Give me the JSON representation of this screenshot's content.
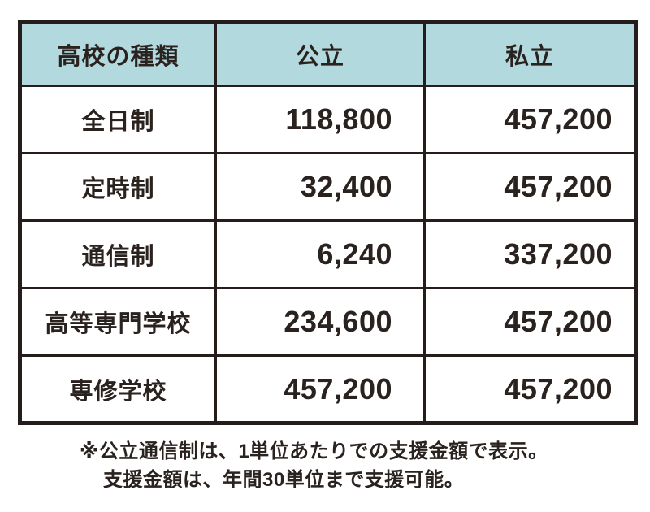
{
  "colors": {
    "background": "#ffffff",
    "header_bg": "#b2d9dd",
    "border": "#241d1b",
    "text": "#2a221f"
  },
  "table": {
    "header": {
      "type_label": "高校の種類",
      "public_label": "公立",
      "private_label": "私立"
    },
    "rows": [
      {
        "label": "全日制",
        "public": "118,800",
        "private": "457,200"
      },
      {
        "label": "定時制",
        "public": "32,400",
        "private": "457,200"
      },
      {
        "label": "通信制",
        "public": "6,240",
        "private": "337,200"
      },
      {
        "label": "高等専門学校",
        "public": "234,600",
        "private": "457,200"
      },
      {
        "label": "専修学校",
        "public": "457,200",
        "private": "457,200"
      }
    ]
  },
  "footnote": {
    "line1": "※公立通信制は、1単位あたりでの支援金額で表示。",
    "line2": "支援金額は、年間30単位まで支援可能。"
  },
  "chart_data": {
    "type": "table",
    "title": "",
    "columns": [
      "高校の種類",
      "公立",
      "私立"
    ],
    "rows": [
      [
        "全日制",
        118800,
        457200
      ],
      [
        "定時制",
        32400,
        457200
      ],
      [
        "通信制",
        6240,
        337200
      ],
      [
        "高等専門学校",
        234600,
        457200
      ],
      [
        "専修学校",
        457200,
        457200
      ]
    ],
    "annotations": [
      "※公立通信制は、1単位あたりでの支援金額で表示。",
      "支援金額は、年間30単位まで支援可能。"
    ]
  }
}
